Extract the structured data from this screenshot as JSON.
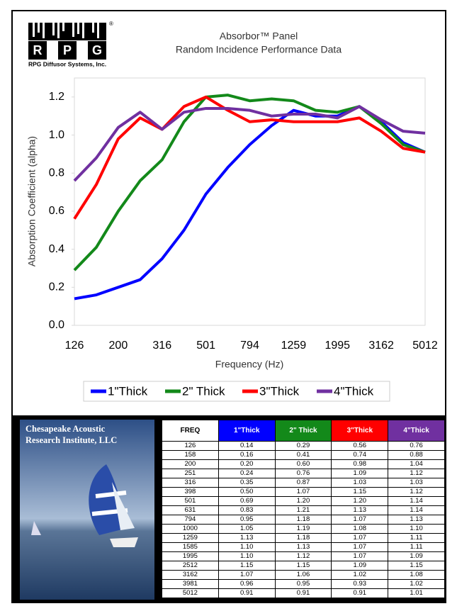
{
  "logo": {
    "letters": [
      "R",
      "P",
      "G"
    ],
    "registered": "®",
    "caption": "RPG Diffusor Systems, Inc."
  },
  "chart_data": {
    "type": "line",
    "title": "Absorbor™ Panel",
    "subtitle": "Random Incidence Performance Data",
    "x_label": "Frequency (Hz)",
    "y_label": "Absorption Coefficient (alpha)",
    "categories": [
      "126",
      null,
      "200",
      null,
      "316",
      null,
      "501",
      null,
      "794",
      null,
      "1259",
      null,
      "1995",
      null,
      "3162",
      null,
      "5012"
    ],
    "ylim": [
      0,
      1.3
    ],
    "yticks": [
      {
        "value": 0,
        "label": "0.0"
      },
      0.2,
      0.4,
      0.6,
      0.8,
      {
        "value": 1,
        "label": "1.0"
      },
      1.2
    ],
    "grid": false,
    "legend": "bottom",
    "series": [
      {
        "name": "1\"Thick",
        "color": "#0000ff",
        "values": [
          0.14,
          0.16,
          0.2,
          0.24,
          0.35,
          0.5,
          0.69,
          0.83,
          0.95,
          1.05,
          1.13,
          1.1,
          1.1,
          1.15,
          1.07,
          0.96,
          0.91
        ]
      },
      {
        "name": "2\" Thick",
        "color": "#13891a",
        "values": [
          0.29,
          0.41,
          0.6,
          0.76,
          0.87,
          1.07,
          1.2,
          1.21,
          1.18,
          1.19,
          1.18,
          1.13,
          1.12,
          1.15,
          1.06,
          0.95,
          0.91
        ]
      },
      {
        "name": "3\"Thick",
        "color": "#ff0000",
        "values": [
          0.56,
          0.74,
          0.98,
          1.09,
          1.03,
          1.15,
          1.2,
          1.13,
          1.07,
          1.08,
          1.07,
          1.07,
          1.07,
          1.09,
          1.02,
          0.93,
          0.91
        ]
      },
      {
        "name": "4\"Thick",
        "color": "#7030a0",
        "values": [
          0.76,
          0.88,
          1.04,
          1.12,
          1.03,
          1.12,
          1.14,
          1.14,
          1.13,
          1.1,
          1.11,
          1.11,
          1.09,
          1.15,
          1.08,
          1.02,
          1.01
        ]
      }
    ]
  },
  "image_caption": [
    "Chesapeake Acoustic",
    "Research Institute, LLC"
  ],
  "table": {
    "header": [
      "FREQ",
      "1\"Thick",
      "2\" Thick",
      "3\"Thick",
      "4\"Thick"
    ],
    "header_colors": [
      "#ffffff",
      "#0000ff",
      "#13891a",
      "#ff0000",
      "#7030a0"
    ],
    "rows": [
      [
        "126",
        "0.14",
        "0.29",
        "0.56",
        "0.76"
      ],
      [
        "158",
        "0.16",
        "0.41",
        "0.74",
        "0.88"
      ],
      [
        "200",
        "0.20",
        "0.60",
        "0.98",
        "1.04"
      ],
      [
        "251",
        "0.24",
        "0.76",
        "1.09",
        "1.12"
      ],
      [
        "316",
        "0.35",
        "0.87",
        "1.03",
        "1.03"
      ],
      [
        "398",
        "0.50",
        "1.07",
        "1.15",
        "1.12"
      ],
      [
        "501",
        "0.69",
        "1.20",
        "1.20",
        "1.14"
      ],
      [
        "631",
        "0.83",
        "1.21",
        "1.13",
        "1.14"
      ],
      [
        "794",
        "0.95",
        "1.18",
        "1.07",
        "1.13"
      ],
      [
        "1000",
        "1.05",
        "1.19",
        "1.08",
        "1.10"
      ],
      [
        "1259",
        "1.13",
        "1.18",
        "1.07",
        "1.11"
      ],
      [
        "1585",
        "1.10",
        "1.13",
        "1.07",
        "1.11"
      ],
      [
        "1995",
        "1.10",
        "1.12",
        "1.07",
        "1.09"
      ],
      [
        "2512",
        "1.15",
        "1.15",
        "1.09",
        "1.15"
      ],
      [
        "3162",
        "1.07",
        "1.06",
        "1.02",
        "1.08"
      ],
      [
        "3981",
        "0.96",
        "0.95",
        "0.93",
        "1.02"
      ],
      [
        "5012",
        "0.91",
        "0.91",
        "0.91",
        "1.01"
      ]
    ]
  }
}
